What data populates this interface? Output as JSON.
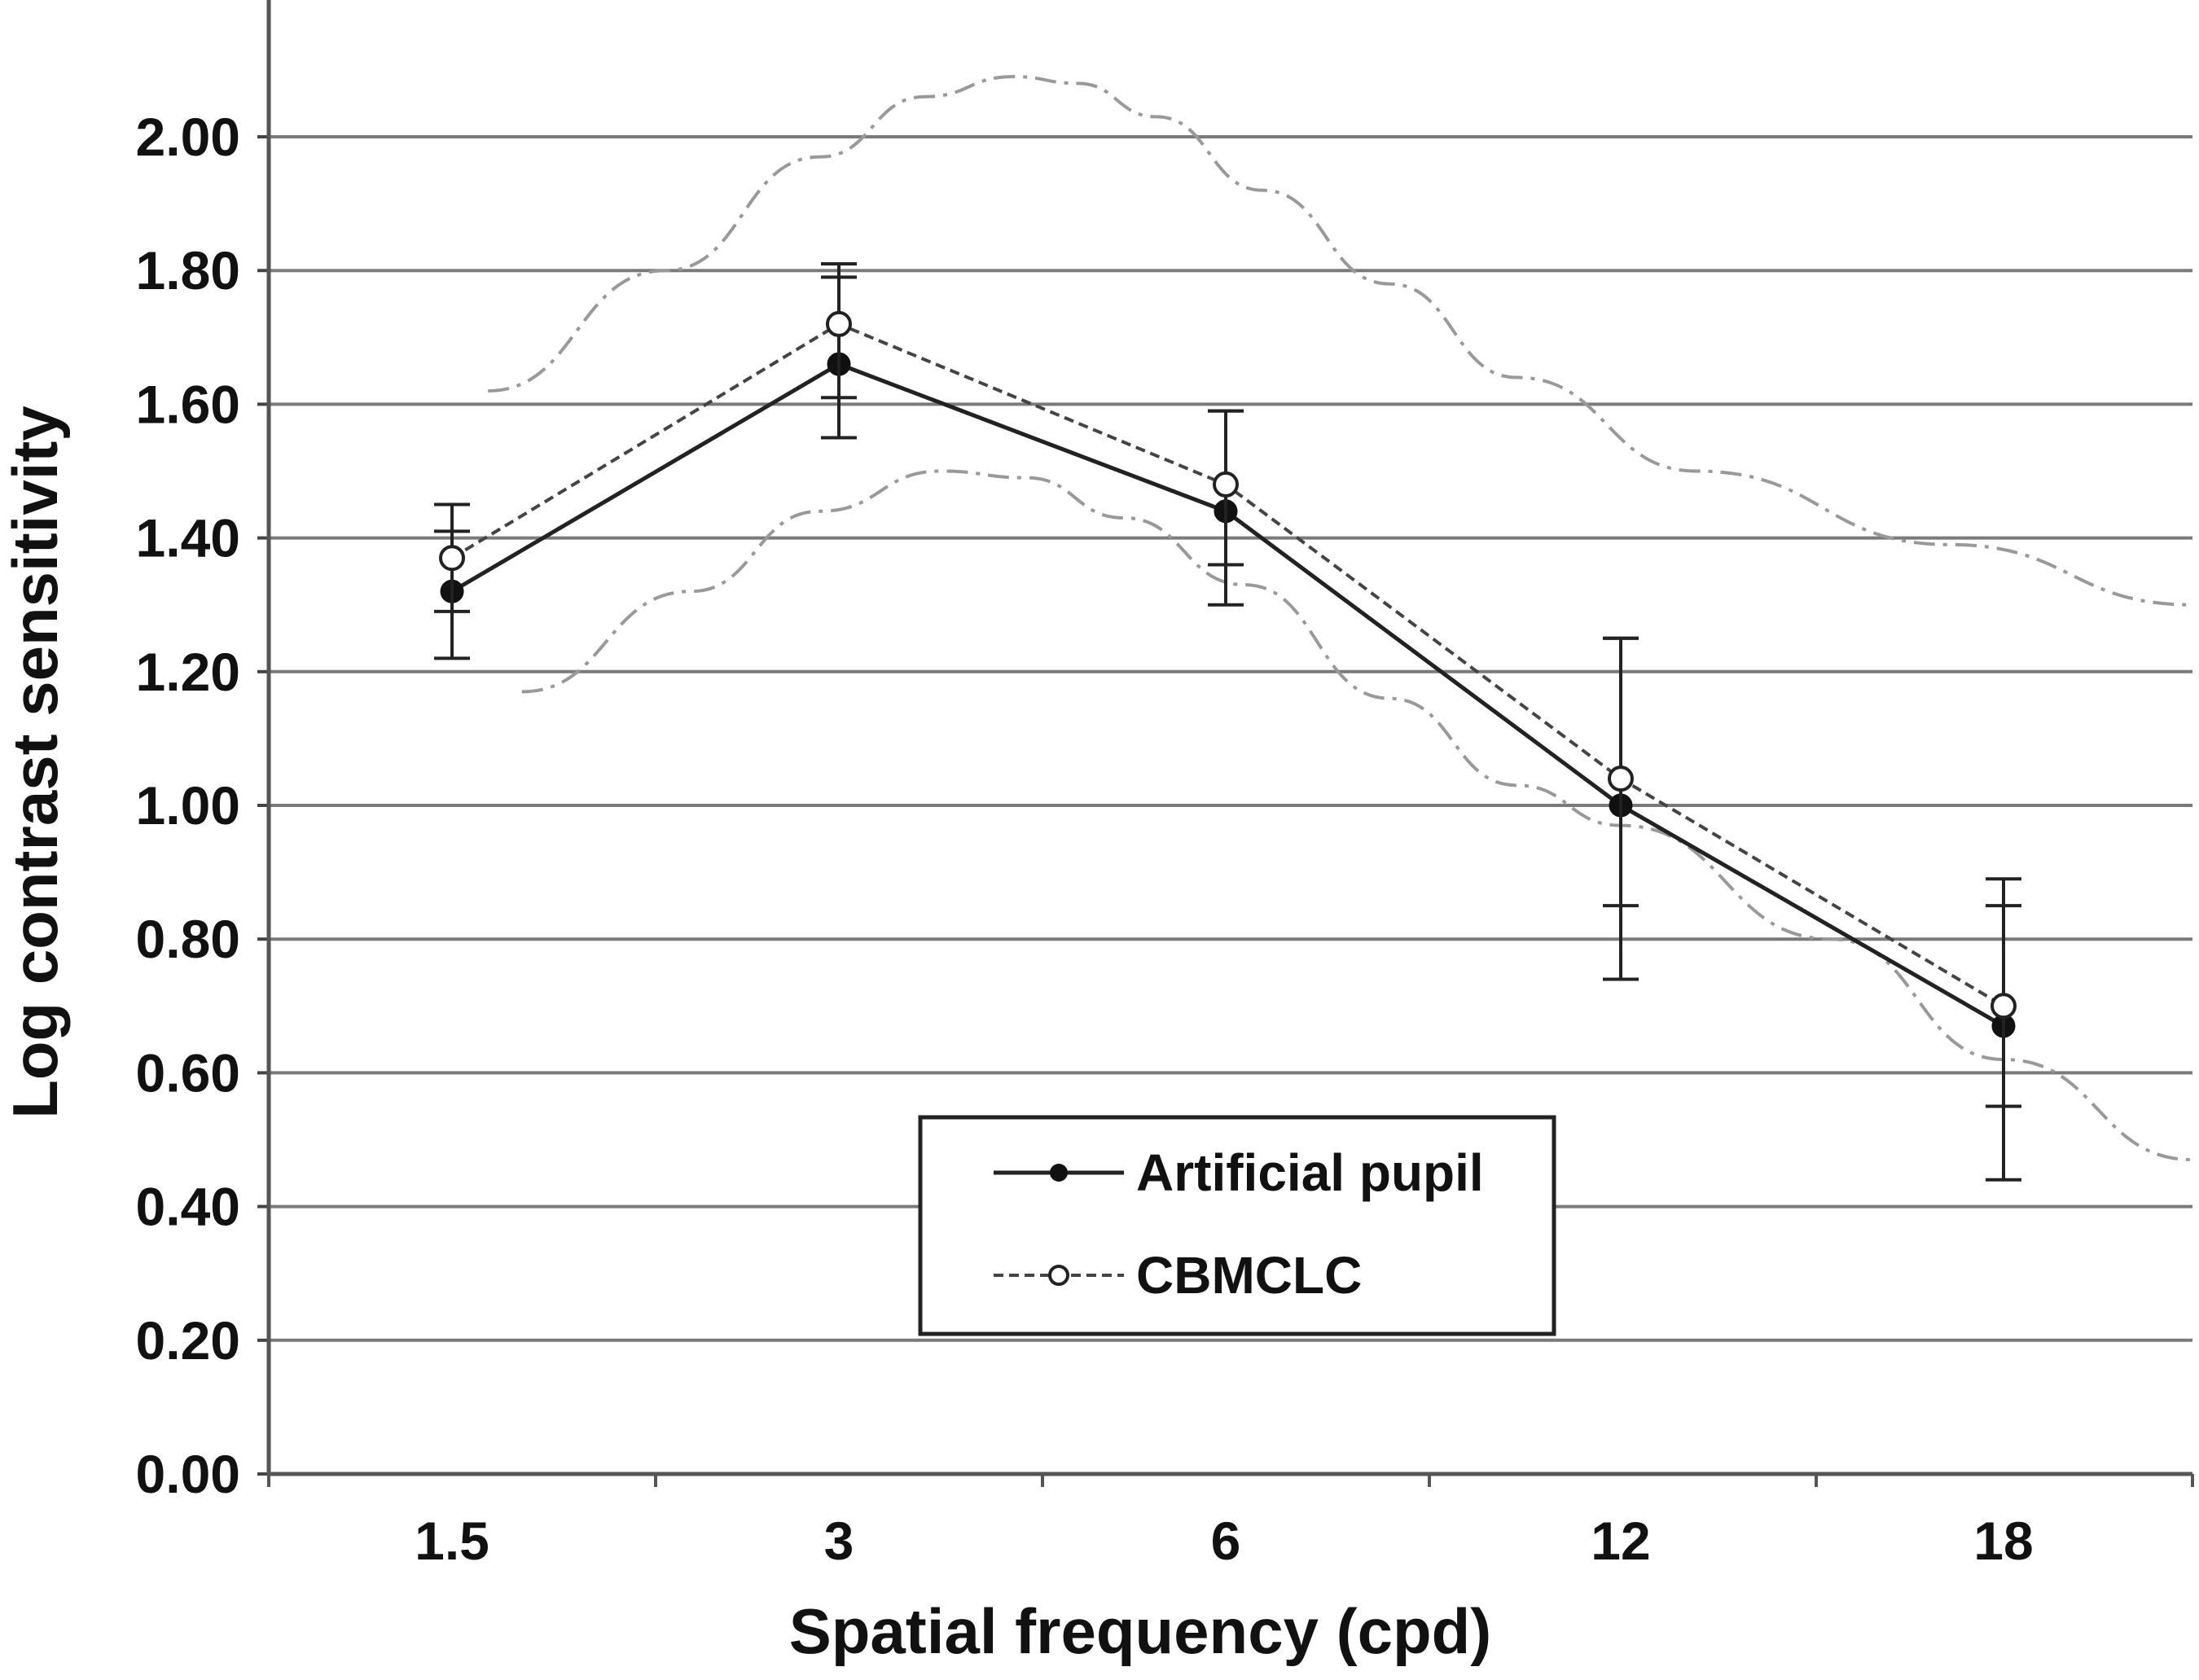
{
  "chart_data": {
    "type": "line",
    "title": "",
    "xlabel": "Spatial frequency (cpd)",
    "ylabel": "Log contrast sensitivity",
    "categories": [
      "1.5",
      "3",
      "6",
      "12",
      "18"
    ],
    "ylim": [
      0,
      2.2
    ],
    "yticks": [
      "0.00",
      "0.20",
      "0.40",
      "0.60",
      "0.80",
      "1.00",
      "1.20",
      "1.40",
      "1.60",
      "1.80",
      "2.00"
    ],
    "grid": true,
    "legend_position": "bottom-center",
    "series": [
      {
        "name": "Artificial pupil",
        "style": "solid",
        "marker": "filled-circle",
        "color": "#222222",
        "values": [
          1.32,
          1.66,
          1.44,
          1.0,
          0.67
        ],
        "error_low": [
          1.22,
          1.55,
          1.3,
          0.74,
          0.44
        ],
        "error_high": [
          1.41,
          1.79,
          1.59,
          1.25,
          0.85
        ]
      },
      {
        "name": "CBMCLC",
        "style": "dashed",
        "marker": "open-circle",
        "color": "#444444",
        "values": [
          1.37,
          1.72,
          1.48,
          1.04,
          0.7
        ],
        "error_low": [
          1.29,
          1.61,
          1.36,
          0.85,
          0.55
        ],
        "error_high": [
          1.45,
          1.81,
          1.59,
          1.25,
          0.89
        ]
      }
    ],
    "normative_bands": {
      "color": "#999999",
      "style": "dash-dot",
      "upper": [
        {
          "x": 1.6,
          "y": 1.62
        },
        {
          "x": 2.2,
          "y": 1.8
        },
        {
          "x": 2.9,
          "y": 1.97
        },
        {
          "x": 3.5,
          "y": 2.06
        },
        {
          "x": 4.1,
          "y": 2.09
        },
        {
          "x": 4.6,
          "y": 2.08
        },
        {
          "x": 5.3,
          "y": 2.03
        },
        {
          "x": 6.4,
          "y": 1.92
        },
        {
          "x": 8.0,
          "y": 1.78
        },
        {
          "x": 10.0,
          "y": 1.64
        },
        {
          "x": 13.0,
          "y": 1.5
        },
        {
          "x": 17.0,
          "y": 1.39
        },
        {
          "x": 21.0,
          "y": 1.3
        }
      ],
      "lower": [
        {
          "x": 1.7,
          "y": 1.17
        },
        {
          "x": 2.3,
          "y": 1.32
        },
        {
          "x": 2.9,
          "y": 1.44
        },
        {
          "x": 3.6,
          "y": 1.5
        },
        {
          "x": 4.2,
          "y": 1.49
        },
        {
          "x": 5.0,
          "y": 1.43
        },
        {
          "x": 6.2,
          "y": 1.33
        },
        {
          "x": 8.0,
          "y": 1.16
        },
        {
          "x": 10.0,
          "y": 1.03
        },
        {
          "x": 12.0,
          "y": 0.97
        },
        {
          "x": 15.0,
          "y": 0.8
        },
        {
          "x": 18.0,
          "y": 0.62
        },
        {
          "x": 21.0,
          "y": 0.47
        }
      ]
    }
  }
}
